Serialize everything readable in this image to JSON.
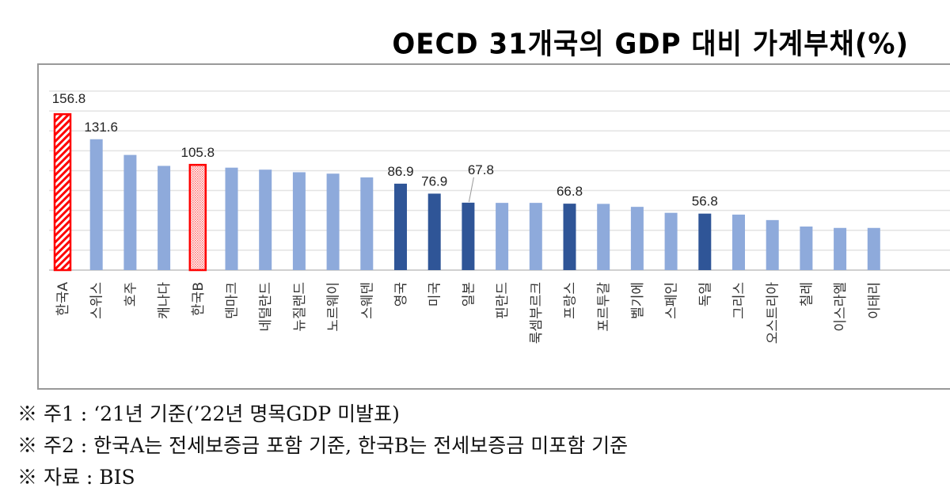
{
  "chart_data": {
    "type": "bar",
    "title": "OECD 31개국의 GDP 대비 가계부채(%)",
    "xlabel": "",
    "ylabel": "",
    "ylim": [
      0,
      180
    ],
    "grid": true,
    "categories": [
      "한국A",
      "스위스",
      "호주",
      "캐나다",
      "한국B",
      "덴마크",
      "네덜란드",
      "뉴질랜드",
      "노르웨이",
      "스웨덴",
      "영국",
      "미국",
      "일본",
      "핀란드",
      "룩셈부르크",
      "프랑스",
      "포르투갈",
      "벨기에",
      "스페인",
      "독일",
      "그리스",
      "오스트리아",
      "칠레",
      "이스라엘",
      "이태리"
    ],
    "values": [
      156.8,
      131.6,
      115.8,
      104.8,
      105.8,
      103.0,
      101.0,
      98.4,
      97.0,
      93.2,
      86.9,
      76.9,
      67.8,
      67.6,
      67.6,
      66.8,
      66.6,
      63.6,
      57.6,
      56.8,
      55.8,
      50.3,
      43.8,
      42.4,
      42.4
    ],
    "labels": [
      "156.8",
      "131.6",
      "",
      "",
      "105.8",
      "",
      "",
      "",
      "",
      "",
      "86.9",
      "76.9",
      "67.8",
      "",
      "",
      "66.8",
      "",
      "",
      "",
      "56.8",
      "",
      "",
      "",
      "",
      ""
    ],
    "styles": [
      "korea-a",
      "light",
      "light",
      "light",
      "korea-b",
      "light",
      "light",
      "light",
      "light",
      "light",
      "dark",
      "dark",
      "dark",
      "light",
      "light",
      "dark",
      "light",
      "light",
      "light",
      "dark",
      "light",
      "light",
      "light",
      "light",
      "light"
    ],
    "colors": {
      "light": "#8eaadb",
      "dark": "#2f5597",
      "korea": "#ff0000",
      "grid": "#e3e3e3"
    }
  },
  "notes": [
    "※ 주1 : ‘21년 기준(’22년 명목GDP 미발표)",
    "※ 주2 : 한국A는 전세보증금 포함 기준, 한국B는 전세보증금 미포함 기준",
    "※ 자료 : BIS"
  ]
}
